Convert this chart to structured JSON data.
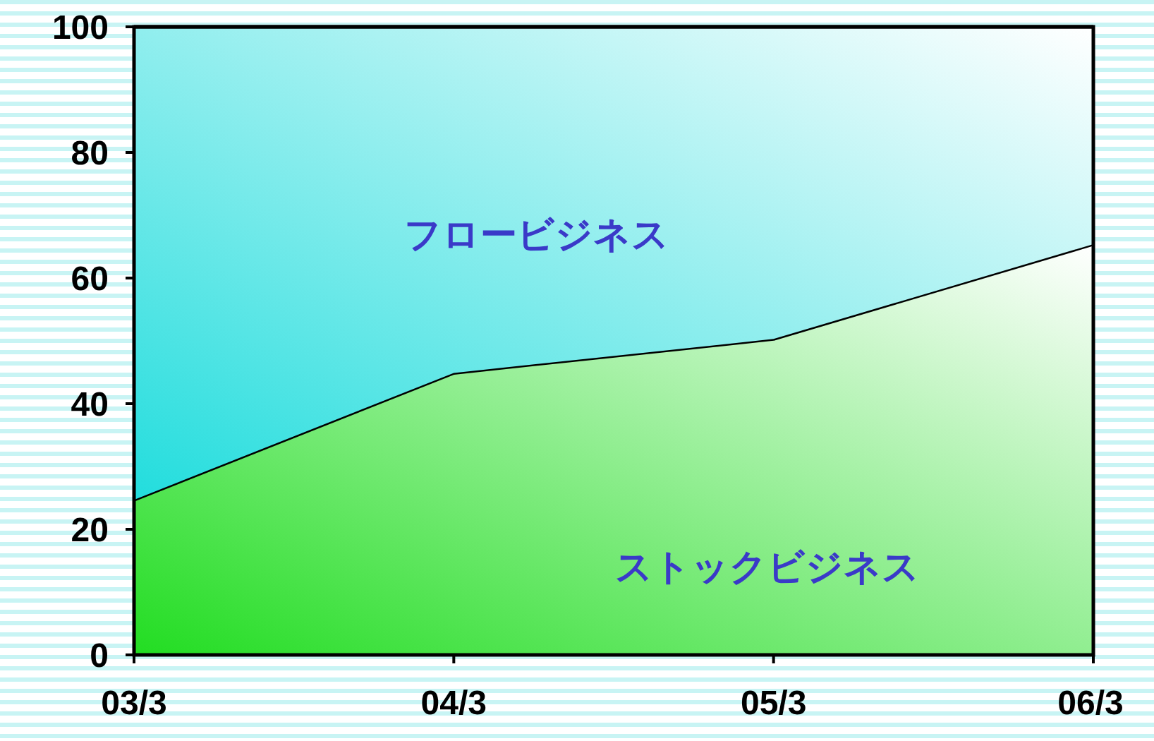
{
  "chart_data": {
    "type": "area",
    "stacked": true,
    "categories": [
      "03/3",
      "04/3",
      "05/3",
      "06/3"
    ],
    "series": [
      {
        "name": "ストックビジネス",
        "color": "#22dd22",
        "values": [
          24.7,
          44.9,
          50.3,
          65.4
        ]
      },
      {
        "name": "フロービジネス",
        "color": "#22dddd",
        "values": [
          75.3,
          55.1,
          49.7,
          34.6
        ]
      }
    ],
    "ylim": [
      0,
      100
    ],
    "yticks": [
      0,
      20,
      40,
      60,
      80,
      100
    ],
    "grid": false
  }
}
